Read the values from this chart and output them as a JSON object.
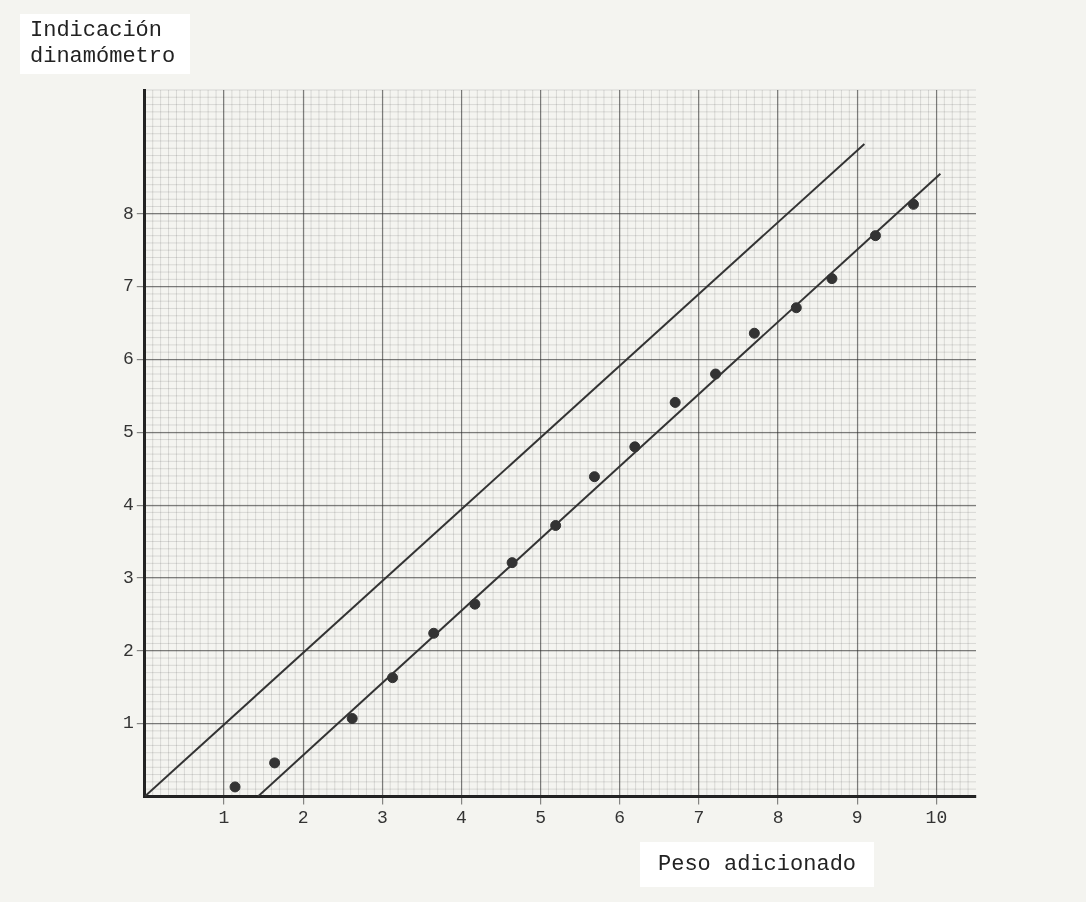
{
  "chart_data": {
    "type": "scatter",
    "xlabel": "Peso adicionado",
    "ylabel": "Indicación dinamómetro",
    "xlim": [
      0,
      10.5
    ],
    "ylim": [
      0,
      9.7
    ],
    "xticks": [
      1,
      2,
      3,
      4,
      5,
      6,
      7,
      8,
      9,
      10
    ],
    "yticks": [
      1,
      2,
      3,
      4,
      5,
      6,
      7,
      8
    ],
    "grid": true,
    "legend": false,
    "series": [
      {
        "marker": "circle",
        "color": "#333333",
        "x": [
          1.14,
          1.64,
          2.62,
          3.13,
          3.65,
          4.17,
          4.64,
          5.19,
          5.68,
          6.19,
          6.7,
          7.21,
          7.7,
          8.23,
          8.68,
          9.23,
          9.71
        ],
        "values": [
          0.13,
          0.46,
          1.07,
          1.63,
          2.24,
          2.64,
          3.21,
          3.72,
          4.39,
          4.8,
          5.41,
          5.8,
          6.36,
          6.71,
          7.11,
          7.7,
          8.13
        ]
      },
      {
        "type": "line",
        "marker": "none",
        "color": "#333333",
        "x": [
          0,
          9.09
        ],
        "values": [
          0,
          8.96
        ]
      },
      {
        "type": "line",
        "marker": "none",
        "color": "#333333",
        "x": [
          1.43,
          10.05
        ],
        "values": [
          0,
          8.55
        ]
      }
    ]
  }
}
